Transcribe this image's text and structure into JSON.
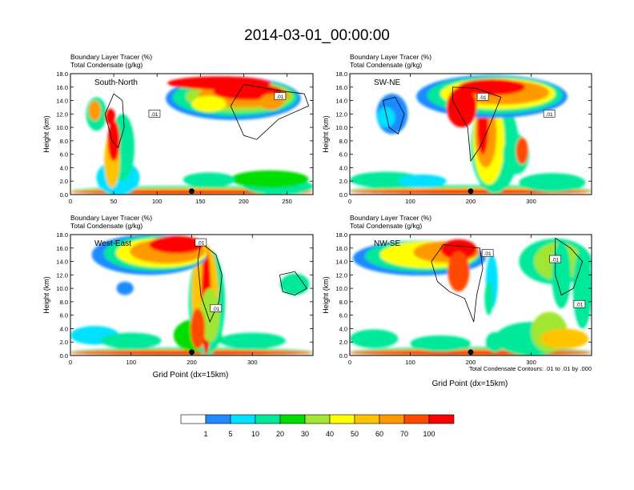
{
  "figure": {
    "title": "2014-03-01_00:00:00",
    "contour_note": "Total Condensate Contours: .01 to .01 by .000",
    "x_axis_label": "Grid Point (dx=15km)"
  },
  "colorbar": {
    "labels": [
      "1",
      "5",
      "10",
      "20",
      "30",
      "40",
      "50",
      "60",
      "70",
      "100"
    ],
    "colors": [
      "#ffffff",
      "#1f8bff",
      "#00e0ff",
      "#00e89a",
      "#00dd00",
      "#a0e632",
      "#ffff00",
      "#ffc400",
      "#ff9900",
      "#ff4a00",
      "#ff0000"
    ]
  },
  "chart_data": [
    {
      "type": "heatmap",
      "label": "South-North",
      "left_title": [
        "Boundary Layer Tracer (%)",
        "Total Condensate (g/kg)"
      ],
      "ylabel": "Height (km)",
      "xlim": [
        0,
        280
      ],
      "ylim": [
        0,
        18
      ],
      "xticks": [
        0,
        50,
        100,
        150,
        200,
        250
      ],
      "xtick_labels": [
        "0",
        "50",
        "100",
        "150",
        "200",
        "250"
      ],
      "yticks": [
        0,
        2,
        4,
        6,
        8,
        10,
        12,
        14,
        16,
        18
      ],
      "ytick_labels": [
        "0.0",
        "2.0",
        "4.0",
        "6.0",
        "8.0",
        "10.0",
        "12.0",
        "14.0",
        "16.0",
        "18.0"
      ],
      "contour_labels": [
        ".01",
        ".01"
      ],
      "marker_x": 140,
      "grid": false
    },
    {
      "type": "heatmap",
      "label": "SW-NE",
      "left_title": [
        "Boundary Layer Tracer (%)",
        "Total Condensate (g/kg)"
      ],
      "ylabel": "Height (km)",
      "xlim": [
        0,
        400
      ],
      "ylim": [
        0,
        18
      ],
      "xticks": [
        0,
        100,
        200,
        300
      ],
      "xtick_labels": [
        "0",
        "100",
        "200",
        "300"
      ],
      "yticks": [
        0,
        2,
        4,
        6,
        8,
        10,
        12,
        14,
        16,
        18
      ],
      "ytick_labels": [
        "0.0",
        "2.0",
        "4.0",
        "6.0",
        "8.0",
        "10.0",
        "12.0",
        "14.0",
        "16.0",
        "18.0"
      ],
      "contour_labels": [
        ".01",
        ".01"
      ],
      "marker_x": 200,
      "grid": false
    },
    {
      "type": "heatmap",
      "label": "West-East",
      "left_title": [
        "Boundary Layer Tracer (%)",
        "Total Condensate (g/kg)"
      ],
      "ylabel": "Height (km)",
      "xlim": [
        0,
        400
      ],
      "ylim": [
        0,
        18
      ],
      "xticks": [
        0,
        100,
        200,
        300
      ],
      "xtick_labels": [
        "0",
        "100",
        "200",
        "300"
      ],
      "yticks": [
        0,
        2,
        4,
        6,
        8,
        10,
        12,
        14,
        16,
        18
      ],
      "ytick_labels": [
        "0.0",
        "2.0",
        "4.0",
        "6.0",
        "8.0",
        "10.0",
        "12.0",
        "14.0",
        "16.0",
        "18.0"
      ],
      "contour_labels": [
        ".01",
        ".01"
      ],
      "marker_x": 200,
      "grid": false
    },
    {
      "type": "heatmap",
      "label": "NW-SE",
      "left_title": [
        "Boundary Layer Tracer (%)",
        "Total Condensate (g/kg)"
      ],
      "ylabel": "Height (km)",
      "xlim": [
        0,
        400
      ],
      "ylim": [
        0,
        18
      ],
      "xticks": [
        0,
        100,
        200,
        300
      ],
      "xtick_labels": [
        "0",
        "100",
        "200",
        "300"
      ],
      "yticks": [
        0,
        2,
        4,
        6,
        8,
        10,
        12,
        14,
        16,
        18
      ],
      "ytick_labels": [
        "0.0",
        "2.0",
        "4.0",
        "6.0",
        "8.0",
        "10.0",
        "12.0",
        "14.0",
        "16.0",
        "18.0"
      ],
      "contour_labels": [
        ".01",
        ".01",
        ".01"
      ],
      "marker_x": 200,
      "grid": false
    }
  ]
}
